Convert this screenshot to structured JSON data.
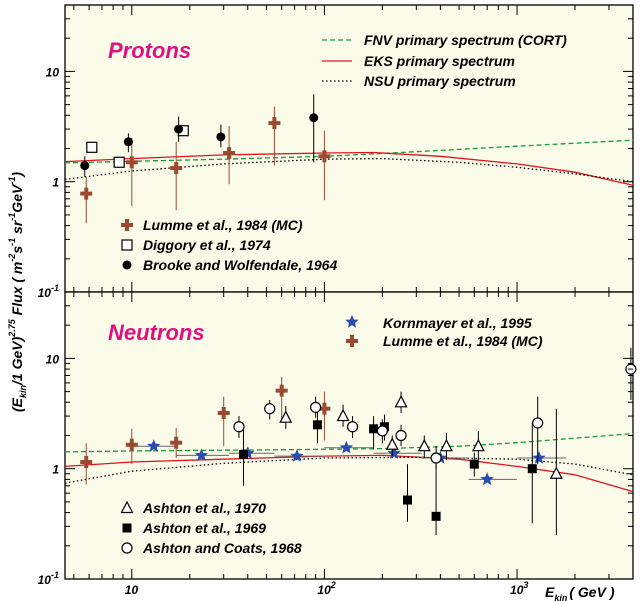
{
  "chart_data": [
    {
      "type": "scatter",
      "title": "Protons",
      "xscale": "log",
      "yscale": "log",
      "xlim": [
        4.5,
        4000
      ],
      "ylim": [
        0.1,
        40
      ],
      "grid": false,
      "legend_position": "top-right and bottom-left",
      "series": [
        {
          "name": "FNV primary spectrum (CORT)",
          "kind": "line",
          "style": "dashed",
          "color": "#1a9a3a",
          "points": [
            [
              4.5,
              1.48
            ],
            [
              10,
              1.53
            ],
            [
              30,
              1.6
            ],
            [
              100,
              1.7
            ],
            [
              300,
              1.87
            ],
            [
              1000,
              2.1
            ],
            [
              4000,
              2.38
            ]
          ]
        },
        {
          "name": "EKS primary spectrum",
          "kind": "line",
          "style": "solid",
          "color": "#e0141e",
          "points": [
            [
              4.5,
              1.52
            ],
            [
              10,
              1.62
            ],
            [
              30,
              1.75
            ],
            [
              100,
              1.82
            ],
            [
              180,
              1.84
            ],
            [
              400,
              1.7
            ],
            [
              1000,
              1.45
            ],
            [
              2000,
              1.22
            ],
            [
              4000,
              0.93
            ]
          ]
        },
        {
          "name": "NSU primary spectrum",
          "kind": "line",
          "style": "dotted",
          "color": "#000000",
          "points": [
            [
              4.5,
              1.05
            ],
            [
              10,
              1.25
            ],
            [
              30,
              1.45
            ],
            [
              100,
              1.6
            ],
            [
              200,
              1.62
            ],
            [
              500,
              1.5
            ],
            [
              1000,
              1.35
            ],
            [
              2000,
              1.18
            ],
            [
              4000,
              1.0
            ]
          ]
        },
        {
          "name": "Lumme et al., 1984 (MC)",
          "kind": "points",
          "marker": "cross",
          "color": "#9b4a32",
          "points": [
            {
              "x": 5.8,
              "y": 0.78,
              "ylo": 0.42,
              "yhi": 1.1
            },
            {
              "x": 10,
              "y": 1.5,
              "ylo": 0.6,
              "yhi": 2.5
            },
            {
              "x": 17,
              "y": 1.33,
              "ylo": 0.55,
              "yhi": 2.3
            },
            {
              "x": 32,
              "y": 1.82,
              "ylo": 0.95,
              "yhi": 3.2
            },
            {
              "x": 55,
              "y": 3.4,
              "ylo": 1.4,
              "yhi": 4.8
            },
            {
              "x": 100,
              "y": 1.7,
              "ylo": 0.68,
              "yhi": 2.9
            }
          ]
        },
        {
          "name": "Diggory et al., 1974",
          "kind": "points",
          "marker": "open-square",
          "color": "#000000",
          "points": [
            {
              "x": 6.2,
              "y": 2.05
            },
            {
              "x": 8.6,
              "y": 1.5
            },
            {
              "x": 18.5,
              "y": 2.9
            }
          ]
        },
        {
          "name": "Brooke and Wolfendale, 1964",
          "kind": "points",
          "marker": "filled-circle",
          "color": "#000000",
          "points": [
            {
              "x": 5.7,
              "y": 1.4,
              "ylo": 1.1,
              "yhi": 1.7
            },
            {
              "x": 9.6,
              "y": 2.3,
              "ylo": 1.85,
              "yhi": 2.75
            },
            {
              "x": 17.5,
              "y": 3.0,
              "ylo": 2.3,
              "yhi": 3.9
            },
            {
              "x": 29,
              "y": 2.55,
              "ylo": 2.05,
              "yhi": 3.3
            },
            {
              "x": 88,
              "y": 3.8,
              "ylo": 1.5,
              "yhi": 6.2
            }
          ]
        }
      ]
    },
    {
      "type": "scatter",
      "title": "Neutrons",
      "xscale": "log",
      "yscale": "log",
      "xlim": [
        4.5,
        4000
      ],
      "ylim": [
        0.1,
        40
      ],
      "grid": false,
      "legend_position": "top-right and bottom-left",
      "series": [
        {
          "name": "FNV",
          "kind": "line",
          "style": "dashed",
          "color": "#1a9a3a",
          "points": [
            [
              4.5,
              1.42
            ],
            [
              10,
              1.45
            ],
            [
              50,
              1.48
            ],
            [
              200,
              1.52
            ],
            [
              500,
              1.6
            ],
            [
              1000,
              1.72
            ],
            [
              4000,
              2.08
            ]
          ]
        },
        {
          "name": "EKS",
          "kind": "line",
          "style": "solid",
          "color": "#e0141e",
          "points": [
            [
              4.5,
              1.05
            ],
            [
              10,
              1.15
            ],
            [
              30,
              1.22
            ],
            [
              100,
              1.3
            ],
            [
              200,
              1.32
            ],
            [
              500,
              1.22
            ],
            [
              1000,
              1.05
            ],
            [
              2000,
              0.88
            ],
            [
              4000,
              0.62
            ]
          ]
        },
        {
          "name": "NSU",
          "kind": "line",
          "style": "dotted",
          "color": "#000000",
          "points": [
            [
              4.5,
              0.74
            ],
            [
              10,
              0.95
            ],
            [
              30,
              1.12
            ],
            [
              100,
              1.25
            ],
            [
              300,
              1.27
            ],
            [
              1000,
              1.22
            ],
            [
              2000,
              1.1
            ],
            [
              4000,
              0.88
            ]
          ]
        },
        {
          "name": "Kornmayer et al., 1995",
          "kind": "points",
          "marker": "star",
          "color": "#2a4cb0",
          "points": [
            {
              "x": 13,
              "y": 1.6,
              "xlo": 9.5,
              "xhi": 17
            },
            {
              "x": 23,
              "y": 1.32,
              "xlo": 17,
              "xhi": 32
            },
            {
              "x": 40,
              "y": 1.38,
              "xlo": 32,
              "xhi": 55
            },
            {
              "x": 72,
              "y": 1.3,
              "xlo": 55,
              "xhi": 100
            },
            {
              "x": 130,
              "y": 1.55,
              "xlo": 100,
              "xhi": 180
            },
            {
              "x": 230,
              "y": 1.38,
              "xlo": 180,
              "xhi": 320
            },
            {
              "x": 400,
              "y": 1.25,
              "xlo": 320,
              "xhi": 560
            },
            {
              "x": 700,
              "y": 0.8,
              "xlo": 560,
              "xhi": 1000
            },
            {
              "x": 1300,
              "y": 1.25,
              "xlo": 1000,
              "xhi": 1800
            }
          ]
        },
        {
          "name": "Lumme et al., 1984 (MC)",
          "kind": "points",
          "marker": "cross",
          "color": "#9b4a32",
          "points": [
            {
              "x": 5.8,
              "y": 1.15,
              "ylo": 0.72,
              "yhi": 1.7
            },
            {
              "x": 10,
              "y": 1.65,
              "ylo": 1.1,
              "yhi": 2.3
            },
            {
              "x": 17,
              "y": 1.72,
              "ylo": 1.25,
              "yhi": 2.35
            },
            {
              "x": 30,
              "y": 3.2,
              "ylo": 1.6,
              "yhi": 4.5
            },
            {
              "x": 60,
              "y": 5.1,
              "ylo": 2.6,
              "yhi": 6.8
            },
            {
              "x": 100,
              "y": 3.5,
              "ylo": 1.8,
              "yhi": 5.0
            }
          ]
        },
        {
          "name": "Ashton et al., 1970",
          "kind": "points",
          "marker": "open-triangle",
          "color": "#000000",
          "points": [
            {
              "x": 63,
              "y": 2.9,
              "ylo": 2.3,
              "yhi": 3.7
            },
            {
              "x": 125,
              "y": 3.0,
              "ylo": 2.4,
              "yhi": 3.8
            },
            {
              "x": 225,
              "y": 1.65,
              "ylo": 1.3,
              "yhi": 2.0
            },
            {
              "x": 250,
              "y": 4.0,
              "ylo": 3.2,
              "yhi": 5.0
            },
            {
              "x": 330,
              "y": 1.6,
              "ylo": 1.25,
              "yhi": 2.0
            },
            {
              "x": 430,
              "y": 1.6,
              "ylo": 1.2,
              "yhi": 2.1
            },
            {
              "x": 630,
              "y": 1.6,
              "ylo": 1.2,
              "yhi": 2.2
            },
            {
              "x": 1600,
              "y": 0.9,
              "ylo": 0.25,
              "yhi": 3.5
            }
          ]
        },
        {
          "name": "Ashton et al., 1969",
          "kind": "points",
          "marker": "filled-square",
          "color": "#000000",
          "points": [
            {
              "x": 38,
              "y": 1.35,
              "ylo": 0.7,
              "yhi": 2.5
            },
            {
              "x": 92,
              "y": 2.5,
              "ylo": 1.7,
              "yhi": 3.3
            },
            {
              "x": 180,
              "y": 2.3,
              "ylo": 1.5,
              "yhi": 3.0
            },
            {
              "x": 205,
              "y": 2.4,
              "ylo": 1.8,
              "yhi": 3.1
            },
            {
              "x": 270,
              "y": 0.52,
              "ylo": 0.33,
              "yhi": 1.1
            },
            {
              "x": 380,
              "y": 0.37,
              "ylo": 0.25,
              "yhi": 1.3
            },
            {
              "x": 600,
              "y": 1.1,
              "ylo": 0.85,
              "yhi": 1.4
            },
            {
              "x": 1200,
              "y": 1.0,
              "ylo": 0.32,
              "yhi": 2.6
            }
          ]
        },
        {
          "name": "Ashton and Coats, 1968",
          "kind": "points",
          "marker": "open-circle",
          "color": "#000000",
          "points": [
            {
              "x": 36,
              "y": 2.4,
              "ylo": 1.9,
              "yhi": 3.0
            },
            {
              "x": 52,
              "y": 3.5,
              "ylo": 2.8,
              "yhi": 4.2
            },
            {
              "x": 90,
              "y": 3.6,
              "ylo": 2.9,
              "yhi": 4.5
            },
            {
              "x": 140,
              "y": 2.4,
              "ylo": 1.9,
              "yhi": 3.0
            },
            {
              "x": 200,
              "y": 2.2,
              "ylo": 1.7,
              "yhi": 2.8
            },
            {
              "x": 250,
              "y": 2.0,
              "ylo": 1.6,
              "yhi": 2.5
            },
            {
              "x": 380,
              "y": 1.25,
              "ylo": 1.0,
              "yhi": 1.6
            },
            {
              "x": 1280,
              "y": 2.6,
              "ylo": 1.1,
              "yhi": 4.5
            },
            {
              "x": 3900,
              "y": 8.0,
              "ylo": 4.2,
              "yhi": 12.5
            }
          ]
        }
      ]
    }
  ],
  "labels": {
    "ylabel_lead": "(E",
    "ylabel_kin1": "kin",
    "ylabel_mid": "/1 GeV)",
    "ylabel_exp": "2.75",
    "ylabel_flux": " Flux  ( m",
    "ylabel_u1": "-2",
    "ylabel_s": "s",
    "ylabel_u2": "-1",
    "ylabel_sr": " sr",
    "ylabel_u3": "-1",
    "ylabel_gev": "GeV",
    "ylabel_u4": "-1",
    "ylabel_close": ")",
    "xlabel_e": "E",
    "xlabel_kin": "kin",
    "xlabel_unit": "( GeV )",
    "ticks_x": [
      {
        "value": 10,
        "base": "10",
        "exp": ""
      },
      {
        "value": 100,
        "base": "10",
        "exp": "2"
      },
      {
        "value": 1000,
        "base": "10",
        "exp": "3"
      }
    ],
    "ticks_y": [
      {
        "value": 10,
        "base": "10",
        "exp": ""
      },
      {
        "value": 1,
        "base": "1",
        "exp": ""
      },
      {
        "value": 0.1,
        "base": "10",
        "exp": "-1"
      }
    ]
  },
  "colors": {
    "panel_bg": "#fbfbea",
    "title_magenta": "#e0117f",
    "fnv_green": "#1a9a3a",
    "eks_red": "#e0141e",
    "lumme_brown": "#9b4a32",
    "kornmayer_blue": "#2a4cb0"
  }
}
